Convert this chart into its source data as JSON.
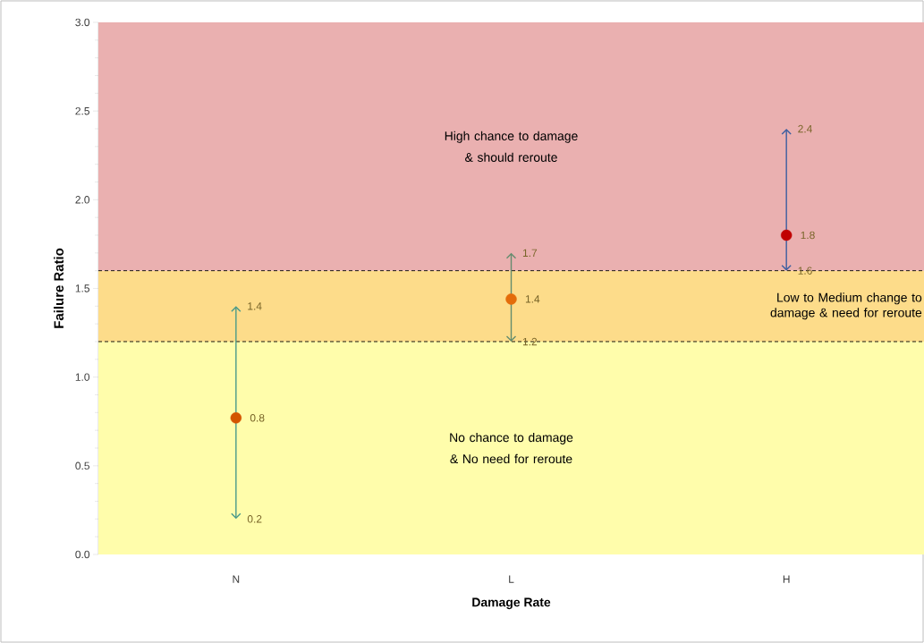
{
  "chart_data": {
    "type": "scatter",
    "xlabel": "Damage Rate",
    "ylabel": "Failure Ratio",
    "categories": [
      "N",
      "L",
      "H"
    ],
    "values": [
      0.77,
      1.44,
      1.8
    ],
    "colors": [
      "#d35400",
      "#e46c0a",
      "#c00000"
    ],
    "value_labels": [
      "0.8",
      "1.4",
      "1.8"
    ],
    "errors": [
      [
        0.2,
        1.4
      ],
      [
        1.2,
        1.7
      ],
      [
        1.6,
        2.4
      ]
    ],
    "marker": "circle",
    "ylim": [
      0,
      3
    ],
    "yticks": [
      {
        "value": 0,
        "label": "0.0"
      },
      {
        "value": 0.5,
        "label": "0.5"
      },
      {
        "value": 1,
        "label": "1.0"
      },
      {
        "value": 1.5,
        "label": "1.5"
      },
      {
        "value": 2,
        "label": "2.0"
      },
      {
        "value": 2.5,
        "label": "2.5"
      },
      {
        "value": 3,
        "label": "3.0"
      }
    ],
    "grid": false,
    "bands": [
      {
        "axis": "y",
        "from": 0,
        "to": 1.2,
        "label": "No chance to damage & No need for reroute",
        "color": "#fffdab"
      },
      {
        "axis": "y",
        "from": 1.2,
        "to": 1.6,
        "label": "Low to Medium change to damage & need for reroute",
        "color": "#fddc8a"
      },
      {
        "axis": "y",
        "from": 1.6,
        "to": 3,
        "label": "High chance to damage & should reroute",
        "color": "#eab0b0"
      }
    ],
    "ref_lines": [
      {
        "axis": "y",
        "value": 1.2,
        "line_style": "dashed",
        "color": "#000000"
      },
      {
        "axis": "y",
        "value": 1.6,
        "line_style": "dashed",
        "color": "#000000"
      }
    ],
    "annotations": [
      {
        "text": "0.2",
        "x": "N",
        "y": 0.2
      },
      {
        "text": "1.4",
        "x": "N",
        "y": 1.4
      },
      {
        "text": "1.2",
        "x": "L",
        "y": 1.2
      },
      {
        "text": "1.7",
        "x": "L",
        "y": 1.7
      },
      {
        "text": "1.6",
        "x": "H",
        "y": 1.6
      },
      {
        "text": "2.4",
        "x": "H",
        "y": 2.4
      }
    ]
  }
}
